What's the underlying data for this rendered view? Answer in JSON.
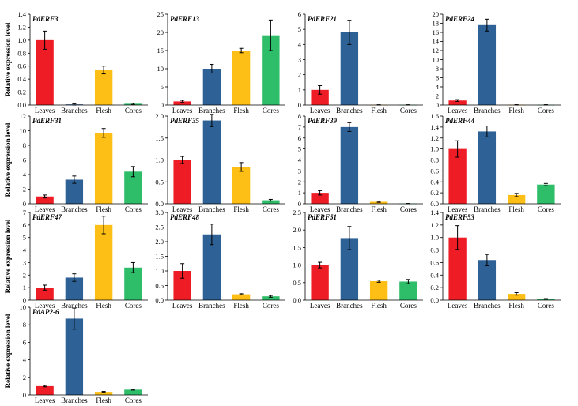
{
  "ylabel": "Relative expression level",
  "categories": [
    "Leaves",
    "Branches",
    "Flesh",
    "Cores"
  ],
  "colors": [
    "#ee1c24",
    "#2e6196",
    "#fdbf16",
    "#2ebd68"
  ],
  "chart_data": [
    {
      "type": "bar",
      "title": "PdERF3",
      "categories": [
        "Leaves",
        "Branches",
        "Flesh",
        "Cores"
      ],
      "values": [
        1.0,
        0.01,
        0.54,
        0.02
      ],
      "errors": [
        0.14,
        0.01,
        0.06,
        0.01
      ],
      "ylim": [
        0,
        1.4
      ],
      "yticks": [
        "0.0",
        "0.2",
        "0.4",
        "0.6",
        "0.8",
        "1.0",
        "1.2",
        "1.4"
      ]
    },
    {
      "type": "bar",
      "title": "PdERF13",
      "categories": [
        "Leaves",
        "Branches",
        "Flesh",
        "Cores"
      ],
      "values": [
        1.0,
        10.0,
        15.0,
        19.2
      ],
      "errors": [
        0.3,
        1.2,
        0.6,
        4.2
      ],
      "ylim": [
        0,
        25
      ],
      "yticks": [
        "0",
        "5",
        "10",
        "15",
        "20",
        "25"
      ]
    },
    {
      "type": "bar",
      "title": "PdERF21",
      "categories": [
        "Leaves",
        "Branches",
        "Flesh",
        "Cores"
      ],
      "values": [
        1.0,
        4.8,
        0.01,
        0.01
      ],
      "errors": [
        0.28,
        0.8,
        0.01,
        0.01
      ],
      "ylim": [
        0,
        6
      ],
      "yticks": [
        "0",
        "1",
        "2",
        "3",
        "4",
        "5",
        "6"
      ]
    },
    {
      "type": "bar",
      "title": "PdERF24",
      "categories": [
        "Leaves",
        "Branches",
        "Flesh",
        "Cores"
      ],
      "values": [
        1.0,
        17.6,
        0.05,
        0.05
      ],
      "errors": [
        0.2,
        1.3,
        0.02,
        0.02
      ],
      "ylim": [
        0,
        20
      ],
      "yticks": [
        "0",
        "2",
        "4",
        "6",
        "8",
        "10",
        "12",
        "14",
        "16",
        "18",
        "20"
      ]
    },
    {
      "type": "bar",
      "title": "PdERF31",
      "categories": [
        "Leaves",
        "Branches",
        "Flesh",
        "Cores"
      ],
      "values": [
        1.0,
        3.3,
        9.7,
        4.4
      ],
      "errors": [
        0.2,
        0.5,
        0.6,
        0.7
      ],
      "ylim": [
        0,
        12
      ],
      "yticks": [
        "0",
        "2",
        "4",
        "6",
        "8",
        "10",
        "12"
      ]
    },
    {
      "type": "bar",
      "title": "PdERF35",
      "categories": [
        "Leaves",
        "Branches",
        "Flesh",
        "Cores"
      ],
      "values": [
        1.0,
        1.9,
        0.84,
        0.08
      ],
      "errors": [
        0.08,
        0.14,
        0.1,
        0.02
      ],
      "ylim": [
        0,
        2.0
      ],
      "yticks": [
        "0.0",
        "0.5",
        "1.0",
        "1.5",
        "2.0"
      ]
    },
    {
      "type": "bar",
      "title": "PdERF39",
      "categories": [
        "Leaves",
        "Branches",
        "Flesh",
        "Cores"
      ],
      "values": [
        1.0,
        7.0,
        0.18,
        0.02
      ],
      "errors": [
        0.2,
        0.4,
        0.05,
        0.01
      ],
      "ylim": [
        0,
        8
      ],
      "yticks": [
        "0",
        "1",
        "2",
        "3",
        "4",
        "5",
        "6",
        "7",
        "8"
      ]
    },
    {
      "type": "bar",
      "title": "PdERF44",
      "categories": [
        "Leaves",
        "Branches",
        "Flesh",
        "Cores"
      ],
      "values": [
        1.0,
        1.32,
        0.16,
        0.35
      ],
      "errors": [
        0.15,
        0.1,
        0.03,
        0.02
      ],
      "ylim": [
        0,
        1.6
      ],
      "yticks": [
        "0.0",
        "0.2",
        "0.4",
        "0.6",
        "0.8",
        "1.0",
        "1.2",
        "1.4",
        "1.6"
      ]
    },
    {
      "type": "bar",
      "title": "PdERF47",
      "categories": [
        "Leaves",
        "Branches",
        "Flesh",
        "Cores"
      ],
      "values": [
        1.0,
        1.8,
        6.0,
        2.6
      ],
      "errors": [
        0.2,
        0.3,
        0.7,
        0.4
      ],
      "ylim": [
        0,
        7
      ],
      "yticks": [
        "0",
        "1",
        "2",
        "3",
        "4",
        "5",
        "6",
        "7"
      ]
    },
    {
      "type": "bar",
      "title": "PdERF48",
      "categories": [
        "Leaves",
        "Branches",
        "Flesh",
        "Cores"
      ],
      "values": [
        1.0,
        2.25,
        0.2,
        0.13
      ],
      "errors": [
        0.25,
        0.35,
        0.02,
        0.03
      ],
      "ylim": [
        0,
        3.0
      ],
      "yticks": [
        "0.0",
        "0.5",
        "1.0",
        "1.5",
        "2.0",
        "2.5",
        "3.0"
      ]
    },
    {
      "type": "bar",
      "title": "PdERF51",
      "categories": [
        "Leaves",
        "Branches",
        "Flesh",
        "Cores"
      ],
      "values": [
        1.0,
        1.77,
        0.54,
        0.53
      ],
      "errors": [
        0.08,
        0.33,
        0.03,
        0.06
      ],
      "ylim": [
        0,
        2.5
      ],
      "yticks": [
        "0.0",
        "0.5",
        "1.0",
        "1.5",
        "2.0",
        "2.5"
      ]
    },
    {
      "type": "bar",
      "title": "PdERF53",
      "categories": [
        "Leaves",
        "Branches",
        "Flesh",
        "Cores"
      ],
      "values": [
        1.0,
        0.64,
        0.1,
        0.02
      ],
      "errors": [
        0.19,
        0.09,
        0.02,
        0.005
      ],
      "ylim": [
        0,
        1.4
      ],
      "yticks": [
        "0.0",
        "0.2",
        "0.4",
        "0.6",
        "0.8",
        "1.0",
        "1.2",
        "1.4"
      ]
    },
    {
      "type": "bar",
      "title": "PdAP2-6",
      "categories": [
        "Leaves",
        "Branches",
        "Flesh",
        "Cores"
      ],
      "values": [
        1.0,
        8.7,
        0.35,
        0.6
      ],
      "errors": [
        0.08,
        1.2,
        0.05,
        0.05
      ],
      "ylim": [
        0,
        10
      ],
      "yticks": [
        "0",
        "2",
        "4",
        "6",
        "8",
        "10"
      ]
    }
  ]
}
